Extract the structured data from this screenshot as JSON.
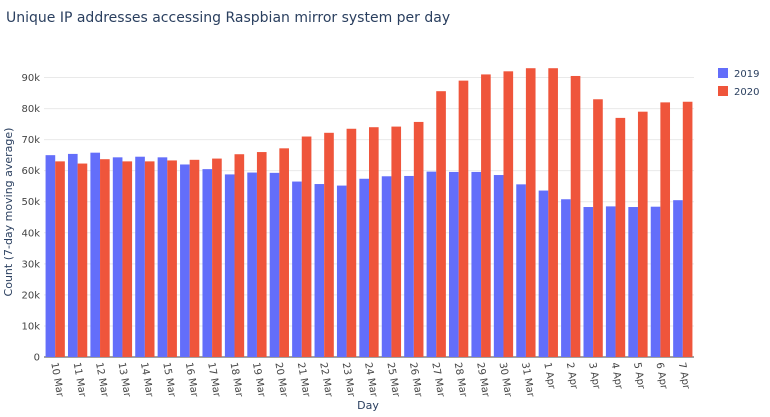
{
  "chart_data": {
    "type": "bar",
    "title": "Unique IP addresses accessing Raspbian mirror system per day",
    "xlabel": "Day",
    "ylabel": "Count (7-day moving average)",
    "ylim": [
      0,
      95000
    ],
    "yticks": [
      {
        "value": 0,
        "label": "0"
      },
      {
        "value": 10000,
        "label": "10k"
      },
      {
        "value": 20000,
        "label": "20k"
      },
      {
        "value": 30000,
        "label": "30k"
      },
      {
        "value": 40000,
        "label": "40k"
      },
      {
        "value": 50000,
        "label": "50k"
      },
      {
        "value": 60000,
        "label": "60k"
      },
      {
        "value": 70000,
        "label": "70k"
      },
      {
        "value": 80000,
        "label": "80k"
      },
      {
        "value": 90000,
        "label": "90k"
      }
    ],
    "grid": true,
    "legend_position": "top-right",
    "categories": [
      "10 Mar",
      "11 Mar",
      "12 Mar",
      "13 Mar",
      "14 Mar",
      "15 Mar",
      "16 Mar",
      "17 Mar",
      "18 Mar",
      "19 Mar",
      "20 Mar",
      "21 Mar",
      "22 Mar",
      "23 Mar",
      "24 Mar",
      "25 Mar",
      "26 Mar",
      "27 Mar",
      "28 Mar",
      "29 Mar",
      "30 Mar",
      "31 Mar",
      "1 Apr",
      "2 Apr",
      "3 Apr",
      "4 Apr",
      "5 Apr",
      "6 Apr",
      "7 Apr"
    ],
    "series": [
      {
        "name": "2019",
        "color": "#636efa",
        "values": [
          65000,
          65400,
          65800,
          64300,
          64500,
          64300,
          62000,
          60500,
          58800,
          59400,
          59300,
          56500,
          55700,
          55200,
          57400,
          58200,
          58300,
          59700,
          59600,
          59600,
          58600,
          55600,
          53600,
          50800,
          48300,
          48500,
          48300,
          48400,
          50500
        ]
      },
      {
        "name": "2020",
        "color": "#ef553b",
        "values": [
          63000,
          62300,
          63700,
          63000,
          63000,
          63300,
          63500,
          63900,
          65300,
          66000,
          67200,
          71000,
          72200,
          73500,
          74000,
          74200,
          75700,
          85600,
          89000,
          91000,
          92000,
          93000,
          93000,
          90500,
          83000,
          77000,
          79000,
          82000,
          82200
        ]
      }
    ]
  }
}
